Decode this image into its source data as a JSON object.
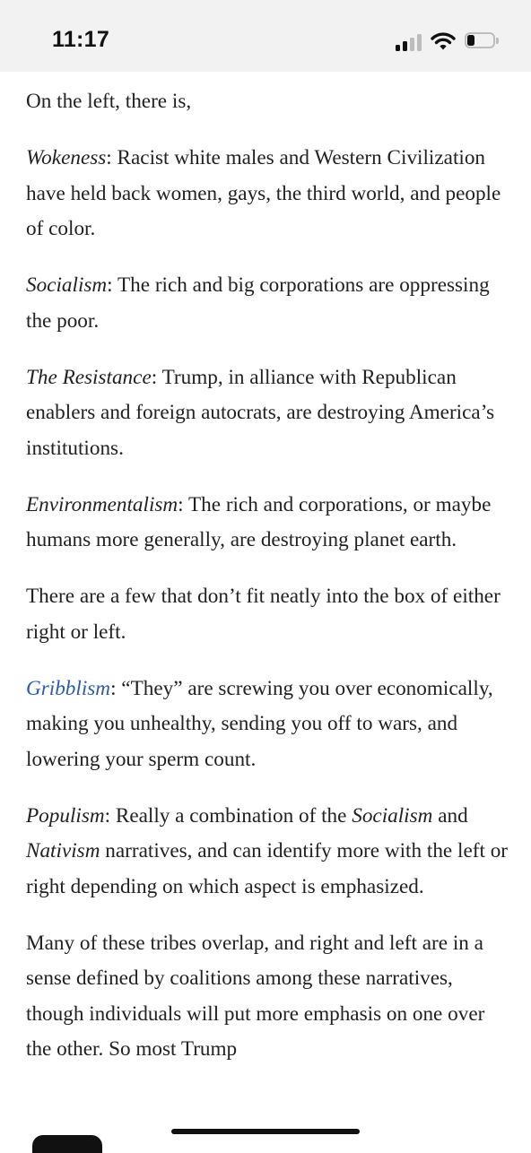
{
  "status_bar": {
    "time": "11:17",
    "signal_bars_active": 2,
    "signal_bars_total": 4,
    "battery_level_fraction": 0.3
  },
  "article": {
    "intro": "On the left, there is,",
    "items": [
      {
        "term": "Wokeness",
        "text": ": Racist white males and Western Civilization have held back women, gays, the third world, and people of color."
      },
      {
        "term": "Socialism",
        "text": ": The rich and big corporations are oppressing the poor."
      },
      {
        "term": "The Resistance",
        "text": ": Trump, in alliance with Republican enablers and foreign autocrats, are destroying America’s institutions."
      },
      {
        "term": "Environmentalism",
        "text": ": The rich and corporations, or maybe humans more generally, are destroying planet earth."
      }
    ],
    "transition": "There are a few that don’t fit neatly into the box of either right or left.",
    "gribblism": {
      "link": "Gribblism",
      "text": ": “They” are screwing you over economically, making you unhealthy, sending you off to wars, and lowering your sperm count."
    },
    "populism": {
      "term": "Populism",
      "text1": ": Really a combination of the ",
      "term2": "Socialism",
      "text2": " and ",
      "term3": "Nativism",
      "text3": " narratives, and can identify more with the left or right depending on which aspect is emphasized."
    },
    "closing": "Many of these tribes overlap, and right and left are in a sense defined by coalitions among these narratives, though individuals will put more emphasis on one over the other. So most Trump"
  },
  "colors": {
    "link": "#2a5db0",
    "text": "#222222",
    "status_bar_bg": "#f2f2f2"
  }
}
